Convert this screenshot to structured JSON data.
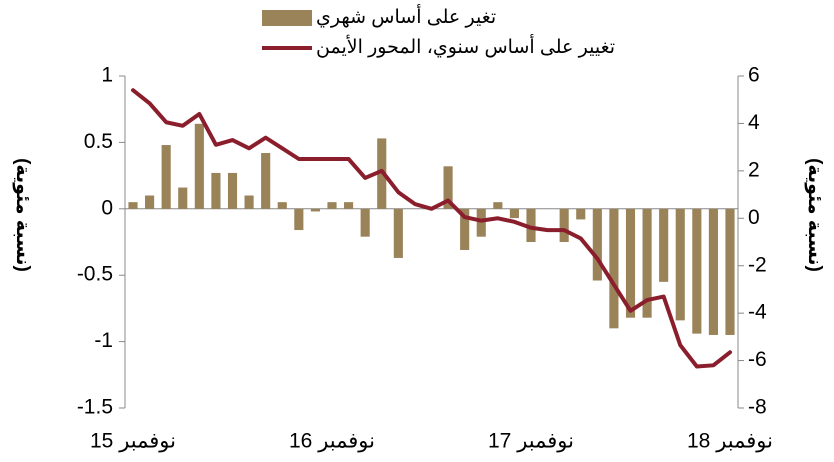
{
  "chart_data": {
    "type": "bar+line",
    "y_label": "(نسبة مئوية)",
    "y2_label": "(نسبة مئوية)",
    "categories": [
      "نوفمبر 15",
      null,
      null,
      null,
      null,
      null,
      null,
      null,
      null,
      null,
      null,
      null,
      "نوفمبر 16",
      null,
      null,
      null,
      null,
      null,
      null,
      null,
      null,
      null,
      null,
      null,
      "نوفمبر 17",
      null,
      null,
      null,
      null,
      null,
      null,
      null,
      null,
      null,
      null,
      null,
      "نوفمبر 18"
    ],
    "series": [
      {
        "name": "تغير على أساس شهري",
        "type": "bar",
        "color": "#9a8259",
        "axis": "y",
        "values": [
          0.05,
          0.1,
          0.48,
          0.16,
          0.64,
          0.27,
          0.27,
          0.1,
          0.42,
          0.05,
          -0.16,
          -0.02,
          0.05,
          0.05,
          -0.21,
          0.53,
          -0.37,
          0,
          0,
          0.32,
          -0.31,
          -0.21,
          0.05,
          -0.07,
          -0.25,
          0,
          -0.25,
          -0.08,
          -0.54,
          -0.9,
          -0.82,
          -0.82,
          -0.55,
          -0.84,
          -0.94,
          -0.95,
          -0.95
        ]
      },
      {
        "name": "تغيير على أساس سنوي، المحور الأيمن",
        "type": "line",
        "color": "#8b1e2c",
        "axis": "y2",
        "values": [
          5.4,
          4.85,
          4.05,
          3.9,
          4.4,
          3.1,
          3.3,
          2.95,
          3.4,
          2.95,
          2.5,
          2.5,
          2.5,
          2.5,
          1.7,
          2.0,
          1.1,
          0.6,
          0.4,
          0.75,
          0.05,
          -0.1,
          0,
          -0.15,
          -0.4,
          -0.5,
          -0.5,
          -0.85,
          -1.7,
          -2.8,
          -3.9,
          -3.45,
          -3.3,
          -5.35,
          -6.25,
          -6.2,
          -5.65
        ]
      }
    ],
    "ylim": [
      -1.5,
      1
    ],
    "yticks": [
      1,
      0.5,
      0,
      -0.5,
      -1,
      -1.5
    ],
    "y2lim": [
      -8,
      6
    ],
    "y2ticks": [
      6,
      4,
      2,
      0,
      -2,
      -4,
      -6,
      -8
    ]
  }
}
